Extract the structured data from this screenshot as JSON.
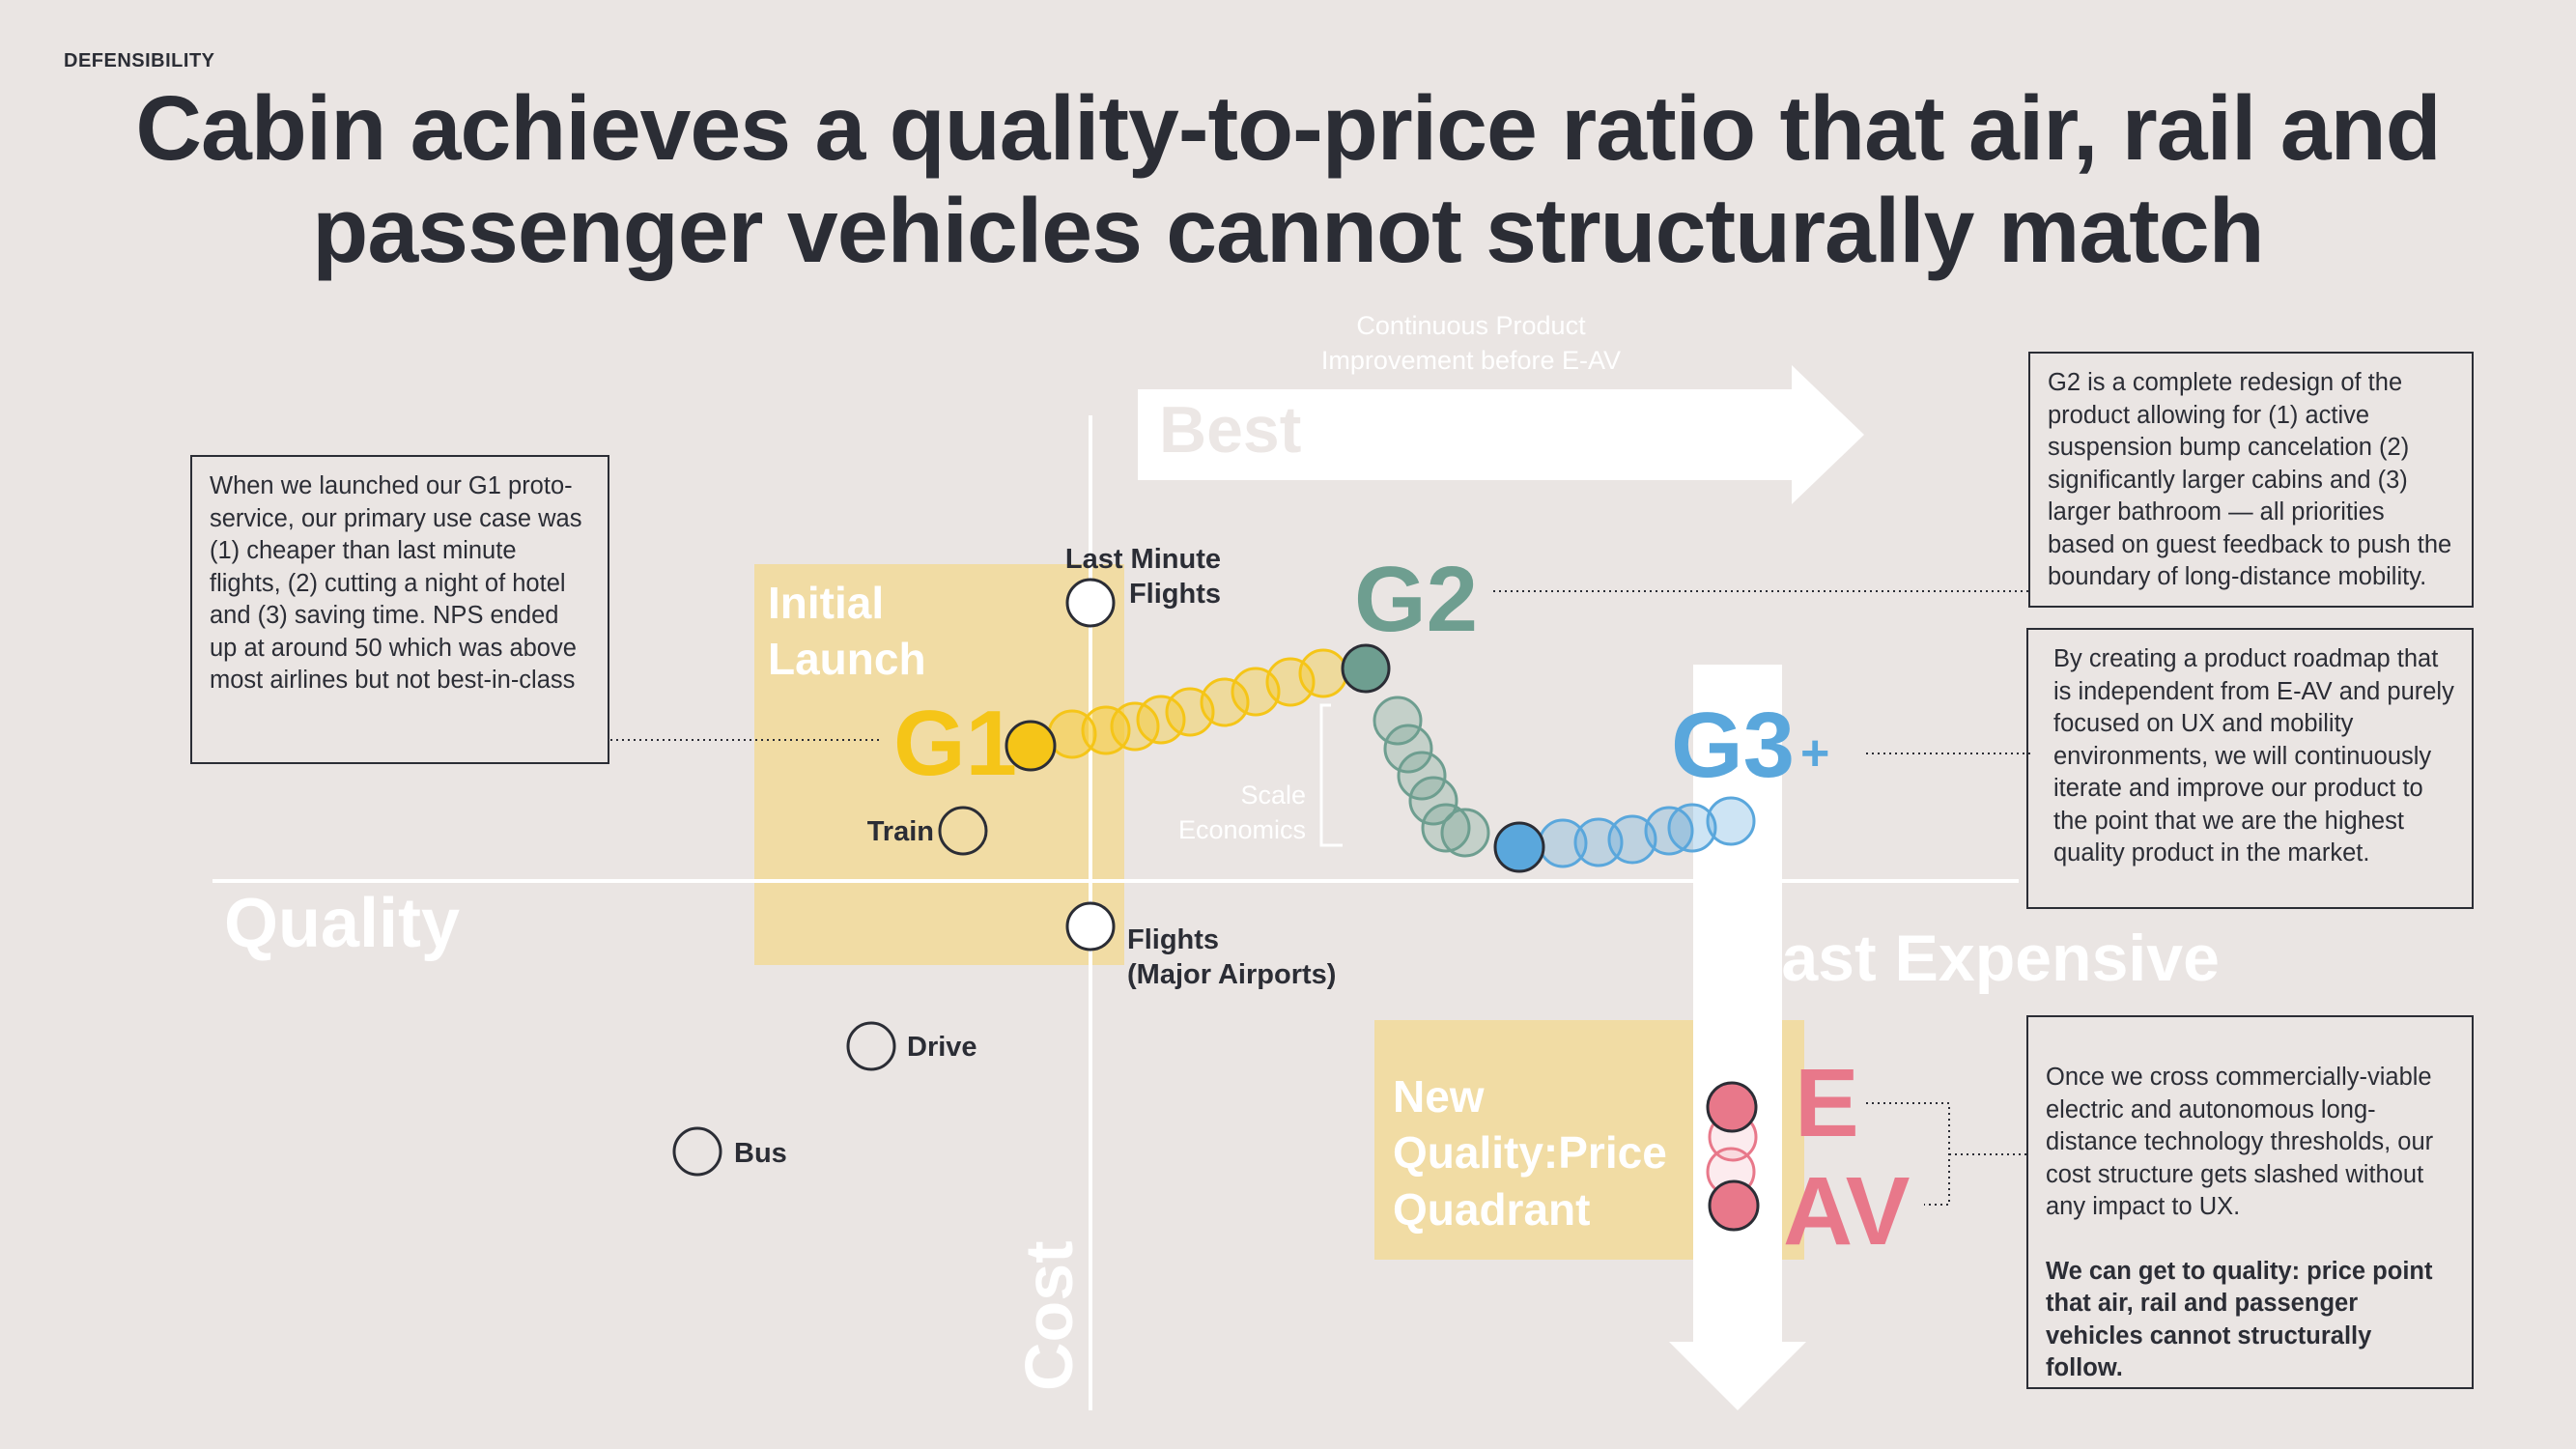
{
  "eyebrow": "DEFENSIBILITY",
  "title": {
    "line1": "Cabin achieves a quality-to-price ratio that air, rail and",
    "line2": "passenger vehicles cannot structurally match"
  },
  "axes": {
    "x_label": "Quality",
    "y_label": "Cost"
  },
  "arrows": {
    "best_label": "Best",
    "improvement_caption_line1": "Continuous Product",
    "improvement_caption_line2": "Improvement before E-AV",
    "least_expensive_label": "Least Expensive"
  },
  "zones": {
    "initial_line1": "Initial",
    "initial_line2": "Launch",
    "new_line1": "New",
    "new_line2": "Quality:Price",
    "new_line3": "Quadrant"
  },
  "milestones": {
    "g1": "G1",
    "g2": "G2",
    "g3": "G3",
    "g3_plus": "+",
    "e": "E",
    "av": "AV"
  },
  "competitors": {
    "last_minute_line1": "Last Minute",
    "last_minute_line2": "Flights",
    "train": "Train",
    "flights_line1": "Flights",
    "flights_line2": "(Major Airports)",
    "drive": "Drive",
    "bus": "Bus"
  },
  "scale_economics": {
    "line1": "Scale",
    "line2": "Economics"
  },
  "notes": {
    "g1": "When we launched our G1 proto-service, our primary use case was (1) cheaper than last minute flights, (2) cutting a night of hotel  and (3) saving time. NPS ended up at around 50 which was above most airlines but not best-in-class",
    "g2": "G2 is a complete redesign of the product allowing for (1) active suspension bump cancelation (2) significantly larger cabins and (3) larger bathroom — all priorities based on guest feedback to push the boundary of long-distance mobility.",
    "g3": "By creating a product roadmap that is independent from E-AV and purely focused on UX and mobility environments, we will continuously iterate and improve our product to the point that we are the highest quality product in the market.",
    "eav_p1": "Once we cross commercially-viable electric and autonomous long-distance technology thresholds, our cost structure gets slashed without any impact to UX.",
    "eav_p2": "We can get to quality: price point that air, rail and passenger vehicles cannot structurally follow."
  },
  "colors": {
    "background": "#eae5e3",
    "text": "#2b2d35",
    "g1": "#f5c518",
    "g2": "#6e9e90",
    "g3": "#5aa7dc",
    "eav": "#e8788a",
    "zone": "#f2d994"
  }
}
